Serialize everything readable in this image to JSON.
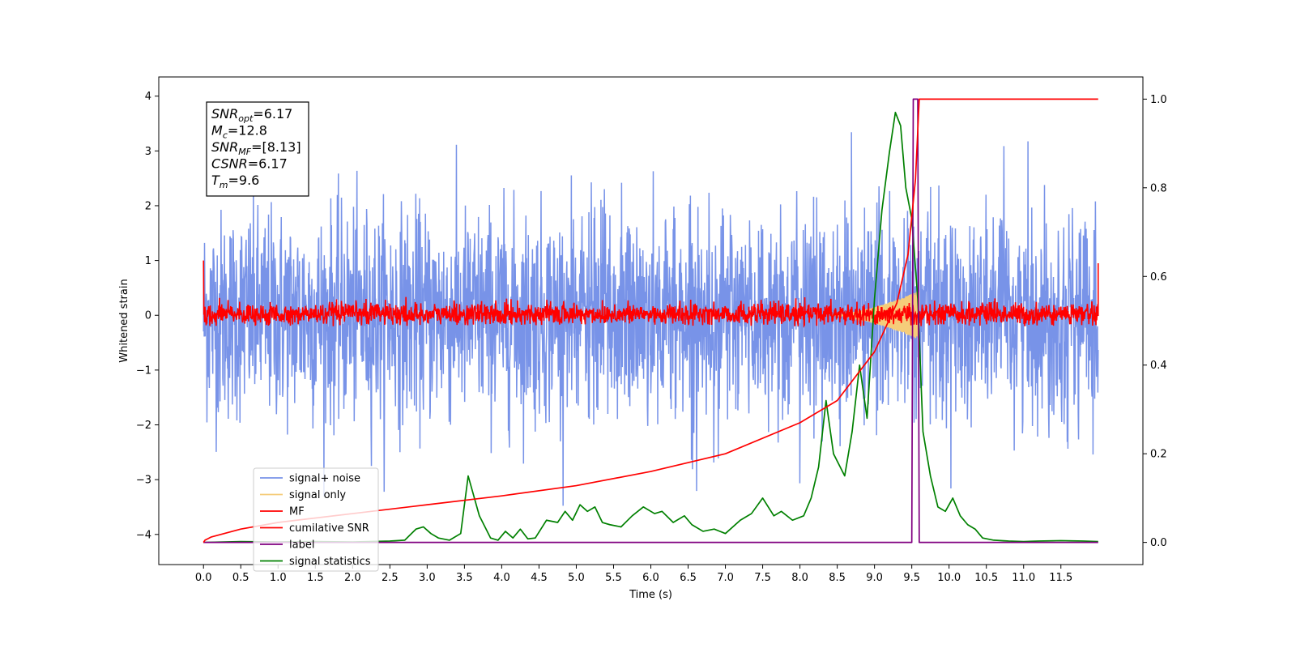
{
  "chart_data": {
    "type": "line",
    "xlabel": "Time (s)",
    "ylabel": "Whitened strain",
    "xlim": [
      -0.6,
      12.6
    ],
    "ylim": [
      -4.55,
      4.35
    ],
    "y2lim": [
      -0.05,
      1.05
    ],
    "x_ticks": [
      "0.0",
      "0.5",
      "1.0",
      "1.5",
      "2.0",
      "2.5",
      "3.0",
      "3.5",
      "4.0",
      "4.5",
      "5.0",
      "5.5",
      "6.0",
      "6.5",
      "7.0",
      "7.5",
      "8.0",
      "8.5",
      "9.0",
      "9.5",
      "10.0",
      "10.5",
      "11.0",
      "11.5"
    ],
    "y_ticks": [
      "4",
      "3",
      "2",
      "1",
      "0",
      "−1",
      "−2",
      "−3",
      "−4"
    ],
    "y2_ticks": [
      "1.0",
      "0.8",
      "0.6",
      "0.4",
      "0.2",
      "0.0"
    ],
    "stats_box": [
      {
        "base": "SNR",
        "sub": "opt",
        "value": "=6.17"
      },
      {
        "base": "M",
        "sub": "c",
        "value": "=12.8"
      },
      {
        "base": "SNR",
        "sub": "MF",
        "value": "=[8.13]"
      },
      {
        "base": "CSNR",
        "sub": "",
        "value": "=6.17"
      },
      {
        "base": "T",
        "sub": "m",
        "value": "=9.6"
      }
    ],
    "legend": {
      "position": "lower-left",
      "entries": [
        {
          "label": "signal+ noise",
          "color": "#7893e8"
        },
        {
          "label": "signal only",
          "color": "#f5cc7a"
        },
        {
          "label": "MF",
          "color": "#ff0000"
        },
        {
          "label": "cumilative SNR",
          "color": "#ff0000"
        },
        {
          "label": "label",
          "color": "#800080"
        },
        {
          "label": "signal statistics",
          "color": "#008000"
        }
      ]
    },
    "series": [
      {
        "name": "signal+ noise",
        "axis": "left",
        "color": "#7893e8",
        "kind": "noise",
        "x_range": [
          0,
          12
        ],
        "amplitude_envelope": [
          -3.6,
          3.9
        ]
      },
      {
        "name": "signal only",
        "axis": "left",
        "color": "#f5cc7a",
        "kind": "chirp",
        "x_range": [
          8.4,
          9.6
        ],
        "peak_amplitude": 0.45
      },
      {
        "name": "MF",
        "axis": "left",
        "color": "#ff0000",
        "kind": "noise",
        "x_range": [
          0,
          12
        ],
        "amplitude_envelope": [
          -0.2,
          0.35
        ]
      },
      {
        "name": "cumilative SNR",
        "axis": "right",
        "color": "#ff0000",
        "x": [
          0.0,
          0.02,
          0.1,
          0.5,
          1.0,
          2.0,
          3.0,
          4.0,
          5.0,
          6.0,
          7.0,
          8.0,
          8.5,
          9.0,
          9.3,
          9.45,
          9.55,
          9.6,
          10.0,
          11.0,
          12.0
        ],
        "y": [
          0.0,
          0.005,
          0.012,
          0.03,
          0.045,
          0.065,
          0.085,
          0.105,
          0.128,
          0.16,
          0.2,
          0.27,
          0.32,
          0.43,
          0.54,
          0.65,
          0.82,
          1.0,
          1.0,
          1.0,
          1.0
        ]
      },
      {
        "name": "label",
        "axis": "right",
        "color": "#800080",
        "x": [
          0.0,
          9.5,
          9.52,
          9.58,
          9.6,
          12.0
        ],
        "y": [
          0.0,
          0.0,
          1.0,
          1.0,
          0.0,
          0.0
        ]
      },
      {
        "name": "signal statistics",
        "axis": "right",
        "color": "#008000",
        "x": [
          0.0,
          0.5,
          1.0,
          1.5,
          2.0,
          2.5,
          2.7,
          2.85,
          2.95,
          3.05,
          3.15,
          3.3,
          3.45,
          3.55,
          3.7,
          3.85,
          3.95,
          4.05,
          4.15,
          4.25,
          4.35,
          4.45,
          4.6,
          4.75,
          4.85,
          4.95,
          5.05,
          5.15,
          5.25,
          5.35,
          5.45,
          5.6,
          5.75,
          5.9,
          6.05,
          6.15,
          6.3,
          6.45,
          6.55,
          6.7,
          6.85,
          7.0,
          7.2,
          7.35,
          7.5,
          7.65,
          7.75,
          7.9,
          8.05,
          8.15,
          8.25,
          8.35,
          8.45,
          8.6,
          8.7,
          8.8,
          8.9,
          9.0,
          9.1,
          9.2,
          9.28,
          9.35,
          9.42,
          9.5,
          9.58,
          9.65,
          9.75,
          9.85,
          9.95,
          10.05,
          10.15,
          10.25,
          10.35,
          10.45,
          10.6,
          10.8,
          11.0,
          11.2,
          11.5,
          11.8,
          12.0
        ],
        "y": [
          0.0,
          0.002,
          0.001,
          0.002,
          0.001,
          0.003,
          0.005,
          0.03,
          0.035,
          0.02,
          0.01,
          0.005,
          0.02,
          0.15,
          0.06,
          0.01,
          0.005,
          0.025,
          0.01,
          0.03,
          0.008,
          0.01,
          0.05,
          0.045,
          0.07,
          0.05,
          0.085,
          0.07,
          0.08,
          0.045,
          0.04,
          0.035,
          0.06,
          0.08,
          0.065,
          0.07,
          0.045,
          0.06,
          0.04,
          0.025,
          0.03,
          0.02,
          0.05,
          0.065,
          0.1,
          0.06,
          0.07,
          0.05,
          0.06,
          0.1,
          0.17,
          0.32,
          0.2,
          0.15,
          0.25,
          0.4,
          0.28,
          0.55,
          0.75,
          0.88,
          0.97,
          0.94,
          0.8,
          0.73,
          0.55,
          0.25,
          0.15,
          0.08,
          0.07,
          0.1,
          0.06,
          0.04,
          0.03,
          0.01,
          0.005,
          0.003,
          0.002,
          0.003,
          0.004,
          0.003,
          0.002
        ]
      }
    ]
  }
}
